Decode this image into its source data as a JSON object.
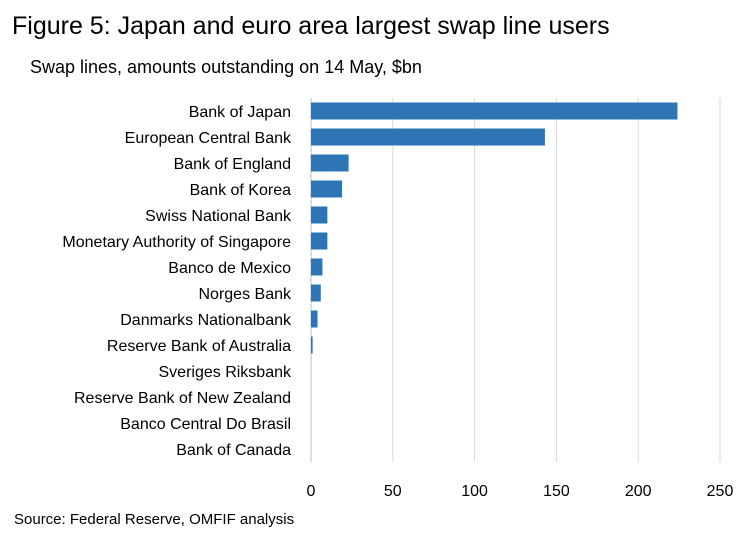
{
  "title": "Figure 5: Japan and euro area largest swap line users",
  "subtitle": "Swap lines, amounts outstanding on 14 May, $bn",
  "source": "Source: Federal Reserve, OMFIF analysis",
  "chart_data": {
    "type": "bar",
    "orientation": "horizontal",
    "categories": [
      "Bank of Japan",
      "European Central Bank",
      "Bank of England",
      "Bank of Korea",
      "Swiss National Bank",
      "Monetary Authority of Singapore",
      "Banco de Mexico",
      "Norges Bank",
      "Danmarks Nationalbank",
      "Reserve Bank of Australia",
      "Sveriges Riksbank",
      "Reserve Bank of New Zealand",
      "Banco Central Do Brasil",
      "Bank of Canada"
    ],
    "values": [
      224,
      143,
      23,
      19,
      10,
      10,
      7,
      6,
      4,
      1,
      0,
      0,
      0,
      0
    ],
    "xlim": [
      0,
      250
    ],
    "xticks": [
      "0",
      "50",
      "100",
      "150",
      "200",
      "250"
    ],
    "grid": true,
    "bar_color": "#2e75b6",
    "grid_color": "#d9d9d9"
  }
}
